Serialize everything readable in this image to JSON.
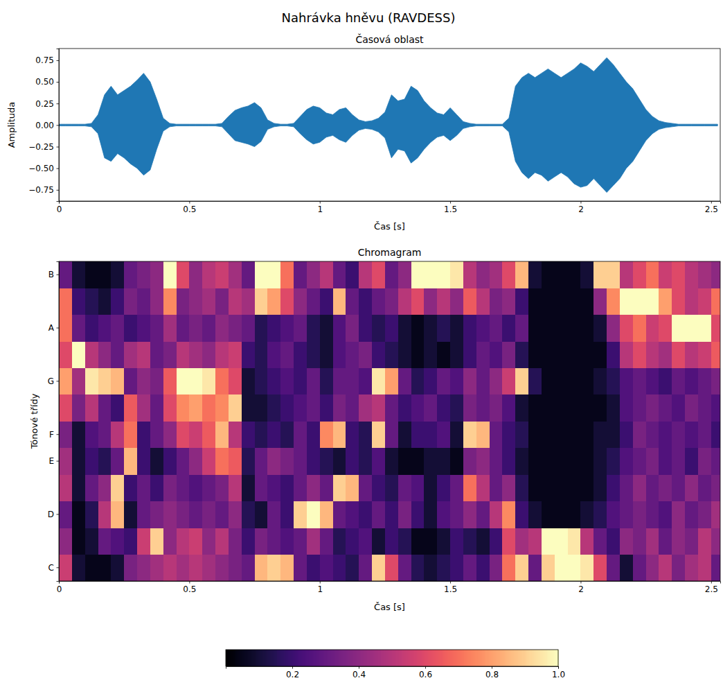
{
  "title": "Nahrávka hněvu (RAVDESS)",
  "chart_data": [
    {
      "type": "area",
      "title": "Časová oblast",
      "x_label": "Čas [s]",
      "y_label": "Amplituda",
      "x": [
        0,
        0.025,
        0.05,
        0.075,
        0.1,
        0.125,
        0.15,
        0.175,
        0.2,
        0.225,
        0.25,
        0.275,
        0.3,
        0.325,
        0.35,
        0.375,
        0.4,
        0.425,
        0.45,
        0.475,
        0.5,
        0.525,
        0.55,
        0.575,
        0.6,
        0.625,
        0.65,
        0.675,
        0.7,
        0.725,
        0.75,
        0.775,
        0.8,
        0.825,
        0.85,
        0.875,
        0.9,
        0.925,
        0.95,
        0.975,
        1,
        1.025,
        1.05,
        1.075,
        1.1,
        1.125,
        1.15,
        1.175,
        1.2,
        1.225,
        1.25,
        1.275,
        1.3,
        1.325,
        1.35,
        1.375,
        1.4,
        1.425,
        1.45,
        1.475,
        1.5,
        1.525,
        1.55,
        1.575,
        1.6,
        1.625,
        1.65,
        1.675,
        1.7,
        1.725,
        1.75,
        1.775,
        1.8,
        1.825,
        1.85,
        1.875,
        1.9,
        1.925,
        1.95,
        1.975,
        2,
        2.025,
        2.05,
        2.075,
        2.1,
        2.125,
        2.15,
        2.175,
        2.2,
        2.225,
        2.25,
        2.275,
        2.3,
        2.325,
        2.35,
        2.375,
        2.4,
        2.425,
        2.45,
        2.475,
        2.5,
        2.525
      ],
      "series": [
        {
          "color": "#1f77b4",
          "values": [
            0.01,
            0.01,
            0.01,
            0.01,
            0.01,
            0.02,
            0.12,
            0.35,
            0.45,
            0.35,
            0.4,
            0.45,
            0.52,
            0.6,
            0.5,
            0.3,
            0.08,
            0.02,
            0.01,
            0.01,
            0.01,
            0.01,
            0.01,
            0.01,
            0.01,
            0.02,
            0.1,
            0.17,
            0.2,
            0.22,
            0.26,
            0.2,
            0.06,
            0.02,
            0.01,
            0.01,
            0.02,
            0.1,
            0.18,
            0.22,
            0.2,
            0.14,
            0.12,
            0.18,
            0.2,
            0.12,
            0.06,
            0.04,
            0.05,
            0.08,
            0.15,
            0.35,
            0.28,
            0.3,
            0.45,
            0.4,
            0.28,
            0.2,
            0.14,
            0.12,
            0.2,
            0.12,
            0.04,
            0.02,
            0.01,
            0.01,
            0.01,
            0.01,
            0.01,
            0.08,
            0.45,
            0.55,
            0.6,
            0.55,
            0.6,
            0.65,
            0.6,
            0.55,
            0.6,
            0.65,
            0.72,
            0.68,
            0.62,
            0.7,
            0.78,
            0.7,
            0.6,
            0.5,
            0.42,
            0.3,
            0.18,
            0.1,
            0.05,
            0.03,
            0.02,
            0.01,
            0.01,
            0.01,
            0.01,
            0.01,
            0.01,
            0.01
          ]
        },
        {
          "color": "#1f77b4",
          "values": [
            -0.01,
            -0.01,
            -0.01,
            -0.01,
            -0.01,
            -0.02,
            -0.1,
            -0.38,
            -0.42,
            -0.33,
            -0.38,
            -0.45,
            -0.5,
            -0.58,
            -0.52,
            -0.28,
            -0.07,
            -0.02,
            -0.01,
            -0.01,
            -0.01,
            -0.01,
            -0.01,
            -0.01,
            -0.01,
            -0.02,
            -0.1,
            -0.18,
            -0.2,
            -0.22,
            -0.25,
            -0.19,
            -0.05,
            -0.02,
            -0.01,
            -0.01,
            -0.02,
            -0.1,
            -0.17,
            -0.22,
            -0.2,
            -0.14,
            -0.12,
            -0.17,
            -0.2,
            -0.12,
            -0.06,
            -0.04,
            -0.05,
            -0.08,
            -0.15,
            -0.38,
            -0.28,
            -0.3,
            -0.44,
            -0.38,
            -0.28,
            -0.2,
            -0.14,
            -0.12,
            -0.18,
            -0.12,
            -0.04,
            -0.02,
            -0.01,
            -0.01,
            -0.01,
            -0.01,
            -0.01,
            -0.08,
            -0.42,
            -0.55,
            -0.62,
            -0.55,
            -0.58,
            -0.65,
            -0.6,
            -0.55,
            -0.6,
            -0.68,
            -0.72,
            -0.7,
            -0.62,
            -0.7,
            -0.78,
            -0.7,
            -0.62,
            -0.5,
            -0.42,
            -0.3,
            -0.18,
            -0.1,
            -0.05,
            -0.03,
            -0.02,
            -0.01,
            -0.01,
            -0.01,
            -0.01,
            -0.01,
            -0.01,
            -0.01
          ]
        }
      ],
      "xlim": [
        0,
        2.535
      ],
      "ylim": [
        -0.88,
        0.886
      ],
      "xticks": [
        0,
        0.5,
        1,
        1.5,
        2,
        2.5
      ],
      "yticks": [
        {
          "value": -0.75,
          "label": "−0.75"
        },
        {
          "value": -0.5,
          "label": "−0.50"
        },
        {
          "value": -0.25,
          "label": "−0.25"
        },
        {
          "value": 0,
          "label": "0.00"
        },
        {
          "value": 0.25,
          "label": "0.25"
        },
        {
          "value": 0.5,
          "label": "0.50"
        },
        {
          "value": 0.75,
          "label": "0.75"
        }
      ]
    },
    {
      "type": "heatmap",
      "title": "Chromagram",
      "x_label": "Čas [s]",
      "y_label": "Tónové třídy",
      "x": [
        0,
        0.05,
        0.1,
        0.15,
        0.2,
        0.25,
        0.3,
        0.35,
        0.4,
        0.45,
        0.5,
        0.55,
        0.6,
        0.65,
        0.7,
        0.75,
        0.8,
        0.85,
        0.9,
        0.95,
        1,
        1.05,
        1.1,
        1.15,
        1.2,
        1.25,
        1.3,
        1.35,
        1.4,
        1.45,
        1.5,
        1.55,
        1.6,
        1.65,
        1.7,
        1.75,
        1.8,
        1.85,
        1.9,
        1.95,
        2,
        2.05,
        2.1,
        2.15,
        2.2,
        2.25,
        2.3,
        2.35,
        2.4,
        2.45,
        2.5
      ],
      "categories": [
        "C",
        null,
        "D",
        null,
        "E",
        "F",
        null,
        "G",
        null,
        "A",
        null,
        "B"
      ],
      "values": [
        [
          0.55,
          0.1,
          0.05,
          0.05,
          0.1,
          0.35,
          0.4,
          0.45,
          0.5,
          0.45,
          0.5,
          0.45,
          0.4,
          0.35,
          0.3,
          0.85,
          0.9,
          0.85,
          0.3,
          0.2,
          0.25,
          0.2,
          0.15,
          0.3,
          0.9,
          0.6,
          0.3,
          0.15,
          0.1,
          0.15,
          0.2,
          0.3,
          0.2,
          0.35,
          0.7,
          0.9,
          0.3,
          0.9,
          1,
          1,
          0.95,
          0.6,
          0.3,
          0.1,
          0.3,
          0.4,
          0.5,
          0.35,
          0.45,
          0.5,
          0.3
        ],
        [
          0.4,
          0.05,
          0.1,
          0.3,
          0.25,
          0.2,
          0.55,
          0.9,
          0.4,
          0.5,
          0.55,
          0.4,
          0.5,
          0.35,
          0.2,
          0.35,
          0.3,
          0.25,
          0.3,
          0.45,
          0.3,
          0.15,
          0.2,
          0.25,
          0.1,
          0.2,
          0.15,
          0.05,
          0.05,
          0.1,
          0.2,
          0.15,
          0.1,
          0.2,
          0.6,
          0.45,
          0.5,
          1,
          1,
          0.95,
          0.5,
          0.3,
          0.2,
          0.4,
          0.35,
          0.45,
          0.3,
          0.4,
          0.35,
          0.5,
          0.4
        ],
        [
          0.3,
          0.05,
          0.15,
          0.5,
          0.85,
          0.1,
          0.3,
          0.35,
          0.4,
          0.35,
          0.3,
          0.35,
          0.3,
          0.4,
          0.15,
          0.1,
          0.3,
          0.2,
          0.9,
          1,
          0.85,
          0.3,
          0.25,
          0.2,
          0.3,
          0.2,
          0.35,
          0.2,
          0.1,
          0.25,
          0.3,
          0.4,
          0.3,
          0.5,
          0.75,
          0.2,
          0.1,
          0.05,
          0.05,
          0.05,
          0.1,
          0.15,
          0.25,
          0.3,
          0.35,
          0.3,
          0.25,
          0.4,
          0.3,
          0.35,
          0.45
        ],
        [
          0.5,
          0.1,
          0.3,
          0.4,
          0.9,
          0.2,
          0.3,
          0.2,
          0.35,
          0.3,
          0.25,
          0.3,
          0.35,
          0.5,
          0.1,
          0.3,
          0.25,
          0.2,
          0.3,
          0.4,
          0.3,
          0.9,
          0.85,
          0.3,
          0.2,
          0.15,
          0.3,
          0.25,
          0.1,
          0.2,
          0.3,
          0.7,
          0.5,
          0.3,
          0.4,
          0.15,
          0.05,
          0.05,
          0.05,
          0.05,
          0.05,
          0.1,
          0.2,
          0.3,
          0.4,
          0.3,
          0.35,
          0.3,
          0.4,
          0.3,
          0.35
        ],
        [
          0.45,
          0.1,
          0.2,
          0.15,
          0.3,
          0.85,
          0.2,
          0.1,
          0.2,
          0.3,
          0.4,
          0.55,
          0.7,
          0.65,
          0.15,
          0.3,
          0.4,
          0.35,
          0.3,
          0.2,
          0.15,
          0.1,
          0.2,
          0.15,
          0.25,
          0.1,
          0.05,
          0.05,
          0.1,
          0.1,
          0.05,
          0.35,
          0.4,
          0.3,
          0.2,
          0.1,
          0.05,
          0.05,
          0.05,
          0.05,
          0.05,
          0.1,
          0.15,
          0.25,
          0.3,
          0.35,
          0.25,
          0.3,
          0.2,
          0.35,
          0.3
        ],
        [
          0.35,
          0.1,
          0.25,
          0.3,
          0.5,
          0.7,
          0.2,
          0.3,
          0.4,
          0.6,
          0.55,
          0.65,
          0.85,
          0.5,
          0.2,
          0.15,
          0.2,
          0.15,
          0.3,
          0.2,
          0.75,
          0.85,
          0.2,
          0.15,
          0.9,
          0.3,
          0.1,
          0.2,
          0.2,
          0.25,
          0.1,
          0.9,
          0.85,
          0.3,
          0.2,
          0.15,
          0.05,
          0.05,
          0.05,
          0.05,
          0.05,
          0.1,
          0.1,
          0.2,
          0.35,
          0.3,
          0.25,
          0.3,
          0.25,
          0.3,
          0.2
        ],
        [
          0.6,
          0.35,
          0.5,
          0.3,
          0.2,
          0.65,
          0.45,
          0.3,
          0.6,
          0.75,
          0.8,
          0.7,
          0.75,
          0.9,
          0.1,
          0.1,
          0.15,
          0.2,
          0.25,
          0.3,
          0.2,
          0.35,
          0.3,
          0.45,
          0.5,
          0.3,
          0.2,
          0.25,
          0.3,
          0.2,
          0.15,
          0.35,
          0.3,
          0.35,
          0.25,
          0.1,
          0.05,
          0.05,
          0.05,
          0.05,
          0.05,
          0.05,
          0.1,
          0.25,
          0.3,
          0.35,
          0.3,
          0.25,
          0.35,
          0.3,
          0.25
        ],
        [
          0.8,
          0.45,
          0.95,
          0.9,
          0.85,
          0.3,
          0.4,
          0.35,
          0.65,
          1,
          1,
          0.95,
          0.7,
          0.6,
          0.1,
          0.15,
          0.2,
          0.25,
          0.2,
          0.3,
          0.15,
          0.3,
          0.3,
          0.25,
          0.95,
          0.8,
          0.3,
          0.15,
          0.2,
          0.3,
          0.25,
          0.4,
          0.3,
          0.4,
          0.55,
          0.9,
          0.15,
          0.05,
          0.05,
          0.05,
          0.05,
          0.1,
          0.15,
          0.25,
          0.3,
          0.25,
          0.2,
          0.3,
          0.25,
          0.3,
          0.35
        ],
        [
          0.6,
          1,
          0.5,
          0.4,
          0.3,
          0.45,
          0.5,
          0.3,
          0.35,
          0.5,
          0.45,
          0.4,
          0.5,
          0.55,
          0.2,
          0.15,
          0.25,
          0.3,
          0.2,
          0.15,
          0.1,
          0.25,
          0.3,
          0.35,
          0.2,
          0.15,
          0.1,
          0.05,
          0.1,
          0.05,
          0.1,
          0.2,
          0.3,
          0.25,
          0.35,
          0.15,
          0.05,
          0.05,
          0.05,
          0.05,
          0.05,
          0.05,
          0.2,
          0.5,
          0.6,
          0.5,
          0.45,
          0.6,
          0.5,
          0.55,
          0.65
        ],
        [
          0.7,
          0.3,
          0.2,
          0.25,
          0.3,
          0.2,
          0.25,
          0.3,
          0.45,
          0.3,
          0.35,
          0.3,
          0.4,
          0.35,
          0.3,
          0.15,
          0.2,
          0.25,
          0.3,
          0.15,
          0.1,
          0.25,
          0.35,
          0.2,
          0.15,
          0.2,
          0.1,
          0.05,
          0.1,
          0.15,
          0.1,
          0.2,
          0.25,
          0.3,
          0.2,
          0.3,
          0.05,
          0.05,
          0.05,
          0.05,
          0.05,
          0.1,
          0.4,
          0.6,
          0.7,
          0.55,
          0.6,
          1,
          1,
          1,
          0.6
        ],
        [
          0.7,
          0.2,
          0.15,
          0.1,
          0.2,
          0.35,
          0.3,
          0.4,
          0.75,
          0.35,
          0.4,
          0.45,
          0.35,
          0.5,
          0.45,
          0.9,
          0.8,
          0.6,
          0.4,
          0.3,
          0.2,
          0.85,
          0.3,
          0.2,
          0.3,
          0.35,
          0.5,
          0.6,
          0.4,
          0.5,
          0.4,
          0.65,
          0.5,
          0.35,
          0.4,
          0.2,
          0.05,
          0.05,
          0.05,
          0.05,
          0.05,
          0.4,
          0.75,
          1,
          1,
          1,
          0.8,
          0.6,
          0.5,
          0.55,
          0.7
        ],
        [
          0.3,
          0.1,
          0.05,
          0.05,
          0.1,
          0.3,
          0.35,
          0.4,
          1,
          0.6,
          0.4,
          0.5,
          0.55,
          0.45,
          0.3,
          1,
          1,
          0.7,
          0.3,
          0.4,
          0.5,
          0.3,
          0.2,
          0.5,
          0.6,
          0.3,
          0.4,
          1,
          1,
          1,
          0.95,
          0.5,
          0.4,
          0.45,
          0.6,
          0.85,
          0.1,
          0.05,
          0.05,
          0.05,
          0.1,
          0.9,
          0.9,
          0.5,
          0.6,
          0.7,
          0.55,
          0.6,
          0.5,
          0.45,
          0.4
        ]
      ],
      "xlim": [
        0,
        2.535
      ],
      "xticks": [
        0,
        0.5,
        1,
        1.5,
        2,
        2.5
      ],
      "colorbar": {
        "range": [
          0,
          1
        ],
        "ticks": [
          0.2,
          0.4,
          0.6,
          0.8,
          {
            "value": 1,
            "label": "1.0"
          }
        ]
      }
    }
  ]
}
